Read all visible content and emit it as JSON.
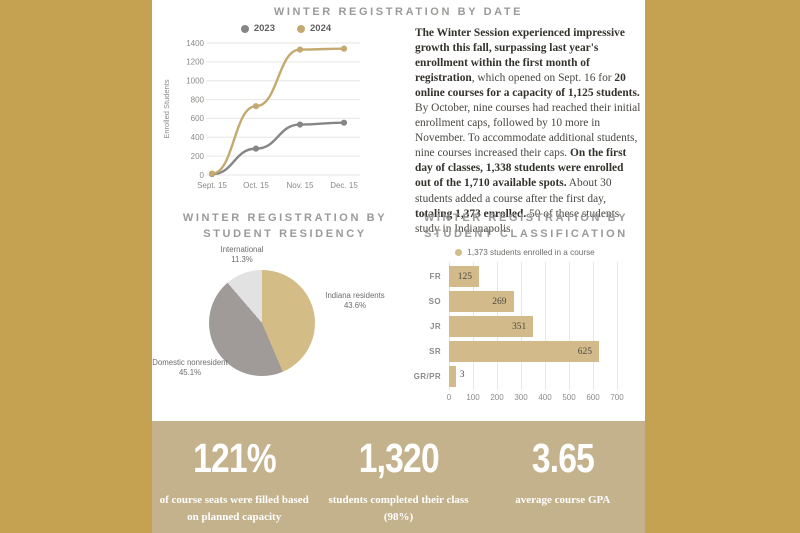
{
  "colors": {
    "page_bg": "#c5a252",
    "panel_bg": "#ffffff",
    "band_bg": "#c4b28c",
    "line_gold": "#c4aa70",
    "line_gray": "#868686",
    "bar_gold": "#d2ba8a",
    "pie_gold": "#d3bc85",
    "pie_gray": "#a09a98",
    "pie_light": "#e2e2e2",
    "axis_gray": "#8a8a88",
    "grid_gray": "#e7e6e3"
  },
  "chart_data": [
    {
      "type": "line",
      "title": "WINTER REGISTRATION BY DATE",
      "ylabel": "Enrolled Students",
      "x": [
        "Sept. 15",
        "Oct. 15",
        "Nov. 15",
        "Dec. 15"
      ],
      "yticks": [
        0,
        200,
        400,
        600,
        800,
        1000,
        1200,
        1400
      ],
      "ylim": [
        0,
        1400
      ],
      "grid": true,
      "legend_position": "top",
      "series": [
        {
          "name": "2023",
          "color": "#868686",
          "values": [
            10,
            280,
            535,
            555
          ]
        },
        {
          "name": "2024",
          "color": "#c4aa70",
          "values": [
            15,
            730,
            1330,
            1340
          ]
        }
      ]
    },
    {
      "type": "pie",
      "title": "WINTER REGISTRATION BY STUDENT RESIDENCY",
      "slices": [
        {
          "label": "Indiana residents",
          "pct": "43.6%",
          "value": 43.6,
          "color": "#d3bc85"
        },
        {
          "label": "Domestic nonresident",
          "pct": "45.1%",
          "value": 45.1,
          "color": "#a09a98"
        },
        {
          "label": "International",
          "pct": "11.3%",
          "value": 11.3,
          "color": "#e2e2e2"
        }
      ],
      "start_angle_deg": 0,
      "direction": "clockwise"
    },
    {
      "type": "bar",
      "title": "WINTER REGISTRATION BY STUDENT CLASSIFICATION",
      "legend": "1,373 students enrolled in a course",
      "orientation": "horizontal",
      "categories": [
        "FR",
        "SO",
        "JR",
        "SR",
        "GR/PR"
      ],
      "values": [
        125,
        269,
        351,
        625,
        3
      ],
      "xticks": [
        0,
        100,
        200,
        300,
        400,
        500,
        600,
        700
      ],
      "xlim": [
        0,
        700
      ],
      "bar_color": "#d2ba8a",
      "grid": true
    }
  ],
  "summary": {
    "segments": [
      {
        "text": "The Winter Session experienced impressive growth this fall, surpassing last year's enrollment within the first month of registration",
        "bold": true
      },
      {
        "text": ", which opened on Sept. 16 for ",
        "bold": false
      },
      {
        "text": "20 online courses for a capacity of 1,125 students.",
        "bold": true
      },
      {
        "text": " By October, nine courses had reached their initial enrollment caps, followed by 10 more in November. To accommodate additional students, nine courses increased their caps. ",
        "bold": false
      },
      {
        "text": "On the first day of classes, 1,338 students were enrolled out of the 1,710 available spots.",
        "bold": true
      },
      {
        "text": " About 30 students added a course after the first day, ",
        "bold": false
      },
      {
        "text": "totaling 1,373 enrolled.",
        "bold": true
      },
      {
        "text": " 50 of these students study in Indianapolis.",
        "bold": false
      }
    ]
  },
  "stats": [
    {
      "value": "121%",
      "caption": "of course seats were filled based on planned capacity"
    },
    {
      "value": "1,320",
      "caption": "students completed their class (98%)"
    },
    {
      "value": "3.65",
      "caption": "average course GPA"
    }
  ]
}
